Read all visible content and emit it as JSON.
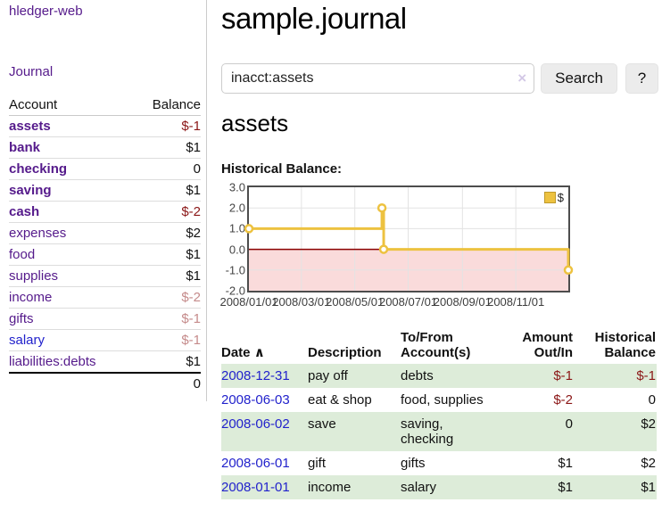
{
  "app": {
    "brand": "hledger-web",
    "nav_journal": "Journal"
  },
  "sidebar": {
    "header": {
      "account": "Account",
      "balance": "Balance"
    },
    "accounts": [
      {
        "name": "assets",
        "balance": "$-1",
        "depth": 1,
        "bold": true,
        "balance_tone": "negative-strong"
      },
      {
        "name": "bank",
        "balance": "$1",
        "depth": 2,
        "bold": true,
        "balance_tone": "normal"
      },
      {
        "name": "checking",
        "balance": "0",
        "depth": 3,
        "bold": true,
        "balance_tone": "normal"
      },
      {
        "name": "saving",
        "balance": "$1",
        "depth": 3,
        "bold": true,
        "balance_tone": "normal"
      },
      {
        "name": "cash",
        "balance": "$-2",
        "depth": 2,
        "bold": true,
        "balance_tone": "negative-strong"
      },
      {
        "name": "expenses",
        "balance": "$2",
        "depth": 1,
        "bold": false,
        "balance_tone": "normal"
      },
      {
        "name": "food",
        "balance": "$1",
        "depth": 2,
        "bold": false,
        "balance_tone": "normal"
      },
      {
        "name": "supplies",
        "balance": "$1",
        "depth": 2,
        "bold": false,
        "balance_tone": "normal"
      },
      {
        "name": "income",
        "balance": "$-2",
        "depth": 1,
        "bold": false,
        "balance_tone": "negative-light"
      },
      {
        "name": "gifts",
        "balance": "$-1",
        "depth": 2,
        "bold": false,
        "balance_tone": "negative-light"
      },
      {
        "name": "salary",
        "balance": "$-1",
        "depth": 2,
        "bold": false,
        "balance_tone": "negative-light",
        "link_tone": "blue"
      },
      {
        "name": "liabilities:debts",
        "balance": "$1",
        "depth": 1,
        "bold": false,
        "balance_tone": "normal"
      }
    ],
    "total_balance": "0"
  },
  "main": {
    "title": "sample.journal",
    "search": {
      "value": "inacct:assets",
      "clear_icon": "×",
      "button_label": "Search",
      "help_label": "?"
    },
    "account_heading": "assets",
    "chart_label": "Historical Balance:"
  },
  "chart_data": {
    "type": "line",
    "step": true,
    "title": "Historical Balance",
    "series": [
      {
        "name": "$",
        "color": "#EDC240",
        "points": [
          [
            "2008-01-01",
            1
          ],
          [
            "2008-06-01",
            2
          ],
          [
            "2008-06-03",
            0
          ],
          [
            "2008-12-31",
            -1
          ]
        ]
      }
    ],
    "x_tick_labels": [
      "2008/01/01",
      "2008/03/01",
      "2008/05/01",
      "2008/07/01",
      "2008/09/01",
      "2008/11/01"
    ],
    "y_ticks": [
      3.0,
      2.0,
      1.0,
      0.0,
      -1.0,
      -2.0
    ],
    "ylim": [
      -2,
      3
    ],
    "xlim": [
      "2008-01-01",
      "2008-12-31"
    ],
    "grid": true,
    "legend_position": "top-right",
    "negative_region_fill": "#fadbdb",
    "zero_line_color": "#8b0000",
    "grid_color": "#e3e3e3"
  },
  "journal": {
    "sort_icon": "∧",
    "columns": [
      "Date",
      "Description",
      "To/From\nAccount(s)",
      "Amount\nOut/In",
      "Historical\nBalance"
    ],
    "rows": [
      {
        "date": "2008-12-31",
        "description": "pay off",
        "accounts": "debts",
        "amount": "$-1",
        "balance": "$-1",
        "amount_neg": true,
        "balance_neg": true
      },
      {
        "date": "2008-06-03",
        "description": "eat & shop",
        "accounts": "food, supplies",
        "amount": "$-2",
        "balance": "0",
        "amount_neg": true,
        "balance_neg": false
      },
      {
        "date": "2008-06-02",
        "description": "save",
        "accounts": "saving,\nchecking",
        "amount": "0",
        "balance": "$2",
        "amount_neg": false,
        "balance_neg": false
      },
      {
        "date": "2008-06-01",
        "description": "gift",
        "accounts": "gifts",
        "amount": "$1",
        "balance": "$2",
        "amount_neg": false,
        "balance_neg": false
      },
      {
        "date": "2008-01-01",
        "description": "income",
        "accounts": "salary",
        "amount": "$1",
        "balance": "$1",
        "amount_neg": false,
        "balance_neg": false
      }
    ]
  }
}
